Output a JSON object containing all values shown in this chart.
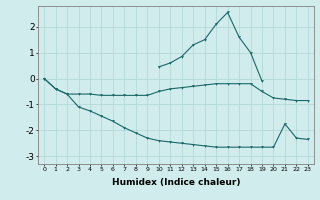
{
  "xlabel": "Humidex (Indice chaleur)",
  "background_color": "#d0ecec",
  "grid_color": "#b0d4d4",
  "line_color": "#1a6868",
  "xlim": [
    -0.5,
    23.5
  ],
  "ylim": [
    -3.3,
    2.8
  ],
  "x": [
    0,
    1,
    2,
    3,
    4,
    5,
    6,
    7,
    8,
    9,
    10,
    11,
    12,
    13,
    14,
    15,
    16,
    17,
    18,
    19,
    20,
    21,
    22,
    23
  ],
  "line1": [
    0.0,
    -0.4,
    -0.6,
    -0.6,
    -0.6,
    -0.65,
    -0.65,
    -0.65,
    -0.65,
    -0.65,
    -0.5,
    -0.4,
    -0.35,
    -0.3,
    -0.25,
    -0.2,
    -0.2,
    -0.2,
    -0.2,
    -0.5,
    -0.75,
    -0.8,
    -0.85,
    -0.85
  ],
  "line2": [
    0.0,
    -0.4,
    -0.6,
    -1.1,
    -1.25,
    -1.45,
    -1.65,
    -1.9,
    -2.1,
    -2.3,
    -2.4,
    -2.45,
    -2.5,
    -2.55,
    -2.6,
    -2.65,
    -2.65,
    -2.65,
    -2.65,
    -2.65,
    -2.65,
    -1.75,
    -2.3,
    -2.35
  ],
  "line3_x": [
    10,
    11,
    12,
    13,
    14,
    15,
    16,
    17,
    18,
    19
  ],
  "line3_y": [
    0.45,
    0.6,
    0.85,
    1.3,
    1.5,
    2.1,
    2.55,
    1.6,
    1.0,
    -0.1
  ],
  "yticks": [
    -3,
    -2,
    -1,
    0,
    1,
    2
  ],
  "xticks": [
    0,
    1,
    2,
    3,
    4,
    5,
    6,
    7,
    8,
    9,
    10,
    11,
    12,
    13,
    14,
    15,
    16,
    17,
    18,
    19,
    20,
    21,
    22,
    23
  ]
}
